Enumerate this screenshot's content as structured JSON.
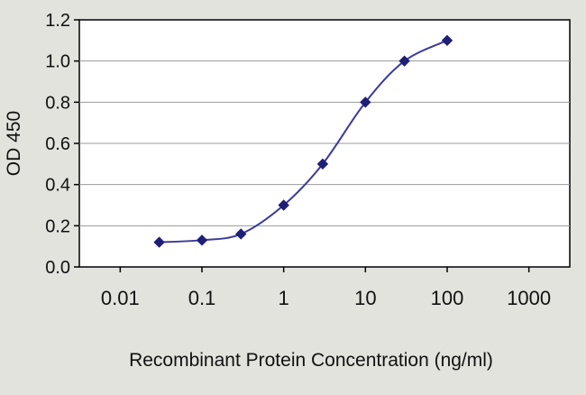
{
  "chart_data": {
    "type": "line",
    "title": "",
    "xlabel": "Recombinant Protein Concentration (ng/ml)",
    "ylabel": "OD 450",
    "x_scale": "log",
    "xlim": [
      0.01,
      1000
    ],
    "x_axis_log_range": [
      -2.5,
      3.5
    ],
    "ylim": [
      0,
      1.2
    ],
    "x_ticks": [
      0.01,
      0.1,
      1,
      10,
      100,
      1000
    ],
    "x_tick_labels": [
      "0.01",
      "0.1",
      "1",
      "10",
      "100",
      "1000"
    ],
    "y_ticks": [
      0.0,
      0.2,
      0.4,
      0.6,
      0.8,
      1.0,
      1.2
    ],
    "y_tick_labels": [
      "0.0",
      "0.2",
      "0.4",
      "0.6",
      "0.8",
      "1.0",
      "1.2"
    ],
    "grid": "horizontal",
    "legend": "none",
    "series": [
      {
        "name": "OD 450",
        "x": [
          0.03,
          0.1,
          0.3,
          1,
          3,
          10,
          30,
          100
        ],
        "y": [
          0.12,
          0.13,
          0.16,
          0.3,
          0.5,
          0.8,
          1.0,
          1.1
        ]
      }
    ],
    "colors": {
      "line": "#3a3a9c",
      "marker": "#1f1f78",
      "plot_bg": "#ffffff",
      "page_bg": "#e2e3dd",
      "grid": "#9a9a9a",
      "axis": "#000000",
      "text": "#111111"
    }
  }
}
